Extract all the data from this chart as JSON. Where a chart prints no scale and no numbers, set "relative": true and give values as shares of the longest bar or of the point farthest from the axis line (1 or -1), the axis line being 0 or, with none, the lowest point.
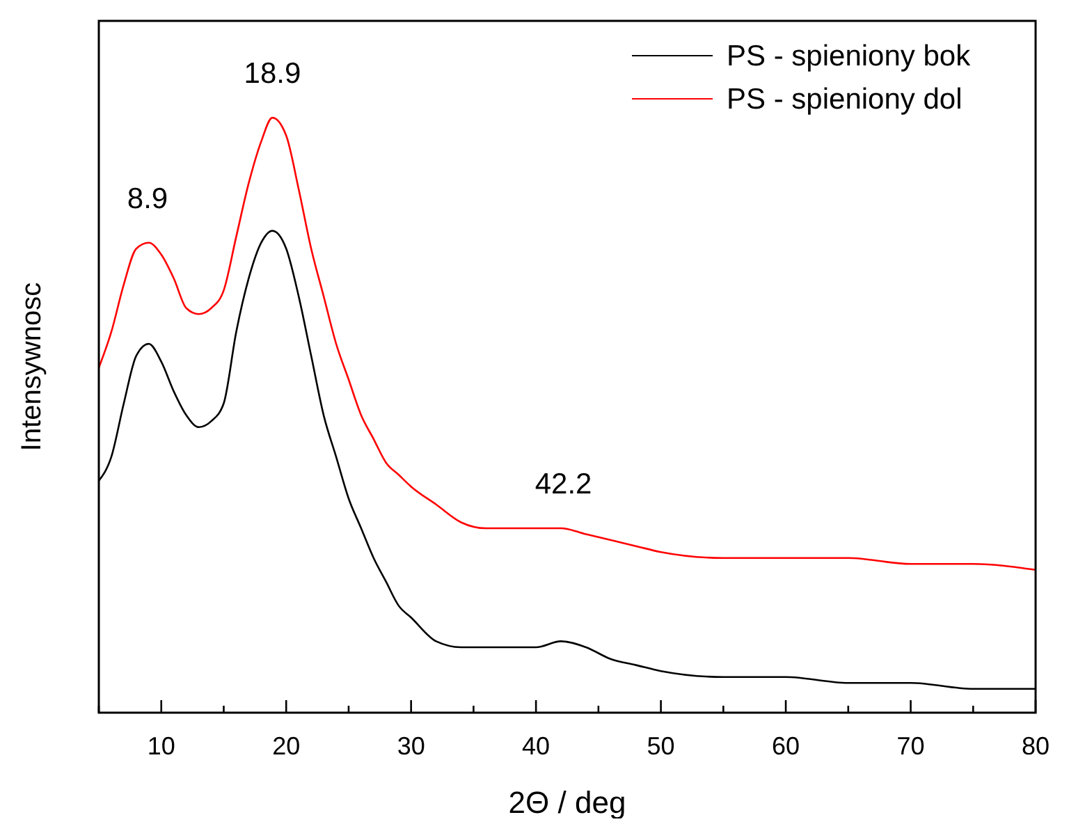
{
  "chart_data": {
    "type": "line",
    "relative": true,
    "xlabel": "2Θ / deg",
    "ylabel": "Intensywnosc",
    "xlim": [
      5,
      80
    ],
    "xticks": [
      {
        "value": 5,
        "label": null
      },
      10,
      {
        "value": 15,
        "label": null
      },
      20,
      {
        "value": 25,
        "label": null
      },
      30,
      {
        "value": 35,
        "label": null
      },
      40,
      {
        "value": 45,
        "label": null
      },
      50,
      {
        "value": 55,
        "label": null
      },
      60,
      {
        "value": 65,
        "label": null
      },
      70,
      {
        "value": 75,
        "label": null
      },
      80
    ],
    "x": [
      5,
      6,
      7,
      8,
      9,
      10,
      11,
      12,
      13,
      14,
      15,
      16,
      17,
      18,
      18.9,
      20,
      21,
      22,
      23,
      24,
      25,
      26,
      27,
      28,
      29,
      30,
      32,
      34,
      36,
      38,
      40,
      42,
      44,
      46,
      48,
      50,
      55,
      60,
      65,
      70,
      75,
      80
    ],
    "series": [
      {
        "name": "PS - spieniony bok",
        "color": "#000000",
        "values": [
          0.39,
          0.43,
          0.52,
          0.6,
          0.62,
          0.59,
          0.54,
          0.5,
          0.48,
          0.49,
          0.52,
          0.64,
          0.73,
          0.79,
          0.81,
          0.78,
          0.7,
          0.6,
          0.5,
          0.43,
          0.36,
          0.31,
          0.26,
          0.22,
          0.18,
          0.16,
          0.12,
          0.11,
          0.11,
          0.11,
          0.11,
          0.12,
          0.11,
          0.09,
          0.08,
          0.07,
          0.06,
          0.06,
          0.05,
          0.05,
          0.04,
          0.04
        ]
      },
      {
        "name": "PS - spieniony dol",
        "color": "#ff0000",
        "values": [
          0.58,
          0.64,
          0.72,
          0.78,
          0.79,
          0.77,
          0.73,
          0.68,
          0.67,
          0.68,
          0.71,
          0.8,
          0.89,
          0.96,
          1,
          0.97,
          0.88,
          0.78,
          0.7,
          0.62,
          0.56,
          0.5,
          0.46,
          0.42,
          0.4,
          0.38,
          0.35,
          0.32,
          0.31,
          0.31,
          0.31,
          0.31,
          0.3,
          0.29,
          0.28,
          0.27,
          0.26,
          0.26,
          0.26,
          0.25,
          0.25,
          0.24
        ]
      }
    ],
    "annotations": [
      {
        "text": "8.9",
        "x": 8.9,
        "y": 0.79
      },
      {
        "text": "18.9",
        "x": 18.9,
        "y": 1
      },
      {
        "text": "42.2",
        "x": 42.2,
        "y": 0.31
      }
    ],
    "legend": "top right",
    "grid": false,
    "line_style": "solid"
  }
}
